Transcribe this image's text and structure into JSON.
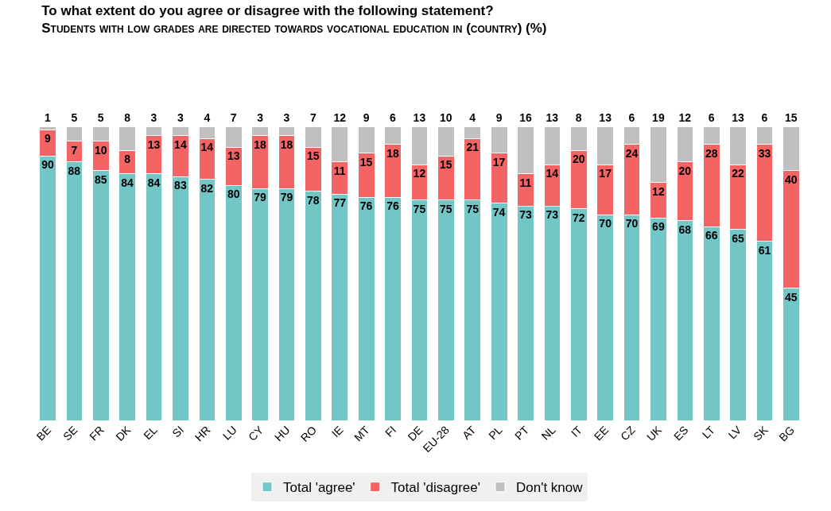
{
  "chart_data": {
    "type": "bar",
    "stacked": true,
    "data_labels": true,
    "legend": "bottom",
    "title": "To what extent do you agree or disagree with the following statement?",
    "subtitle": "Students with low grades are directed towards vocational education in (country) (%)",
    "categories": [
      "BE",
      "SE",
      "FR",
      "DK",
      "EL",
      "SI",
      "HR",
      "LU",
      "CY",
      "HU",
      "RO",
      "IE",
      "MT",
      "FI",
      "DE",
      "EU-28",
      "AT",
      "PL",
      "PT",
      "NL",
      "IT",
      "EE",
      "CZ",
      "UK",
      "ES",
      "LT",
      "LV",
      "SK",
      "BG"
    ],
    "series": [
      {
        "name": "Total 'agree'",
        "color": "#73c6c6",
        "values": [
          90,
          88,
          85,
          84,
          84,
          83,
          82,
          80,
          79,
          79,
          78,
          77,
          76,
          76,
          75,
          75,
          75,
          74,
          73,
          73,
          72,
          70,
          70,
          69,
          68,
          66,
          65,
          61,
          45
        ]
      },
      {
        "name": "Total 'disagree'",
        "color": "#f56464",
        "values": [
          9,
          7,
          10,
          8,
          13,
          14,
          14,
          13,
          18,
          18,
          15,
          11,
          15,
          18,
          12,
          15,
          21,
          17,
          11,
          14,
          20,
          17,
          24,
          12,
          20,
          28,
          22,
          33,
          40
        ]
      },
      {
        "name": "Don't know",
        "color": "#c0c0c0",
        "values": [
          1,
          5,
          5,
          8,
          3,
          3,
          4,
          7,
          3,
          3,
          7,
          12,
          9,
          6,
          13,
          10,
          4,
          9,
          16,
          13,
          8,
          13,
          6,
          19,
          12,
          6,
          13,
          6,
          15
        ]
      }
    ]
  }
}
